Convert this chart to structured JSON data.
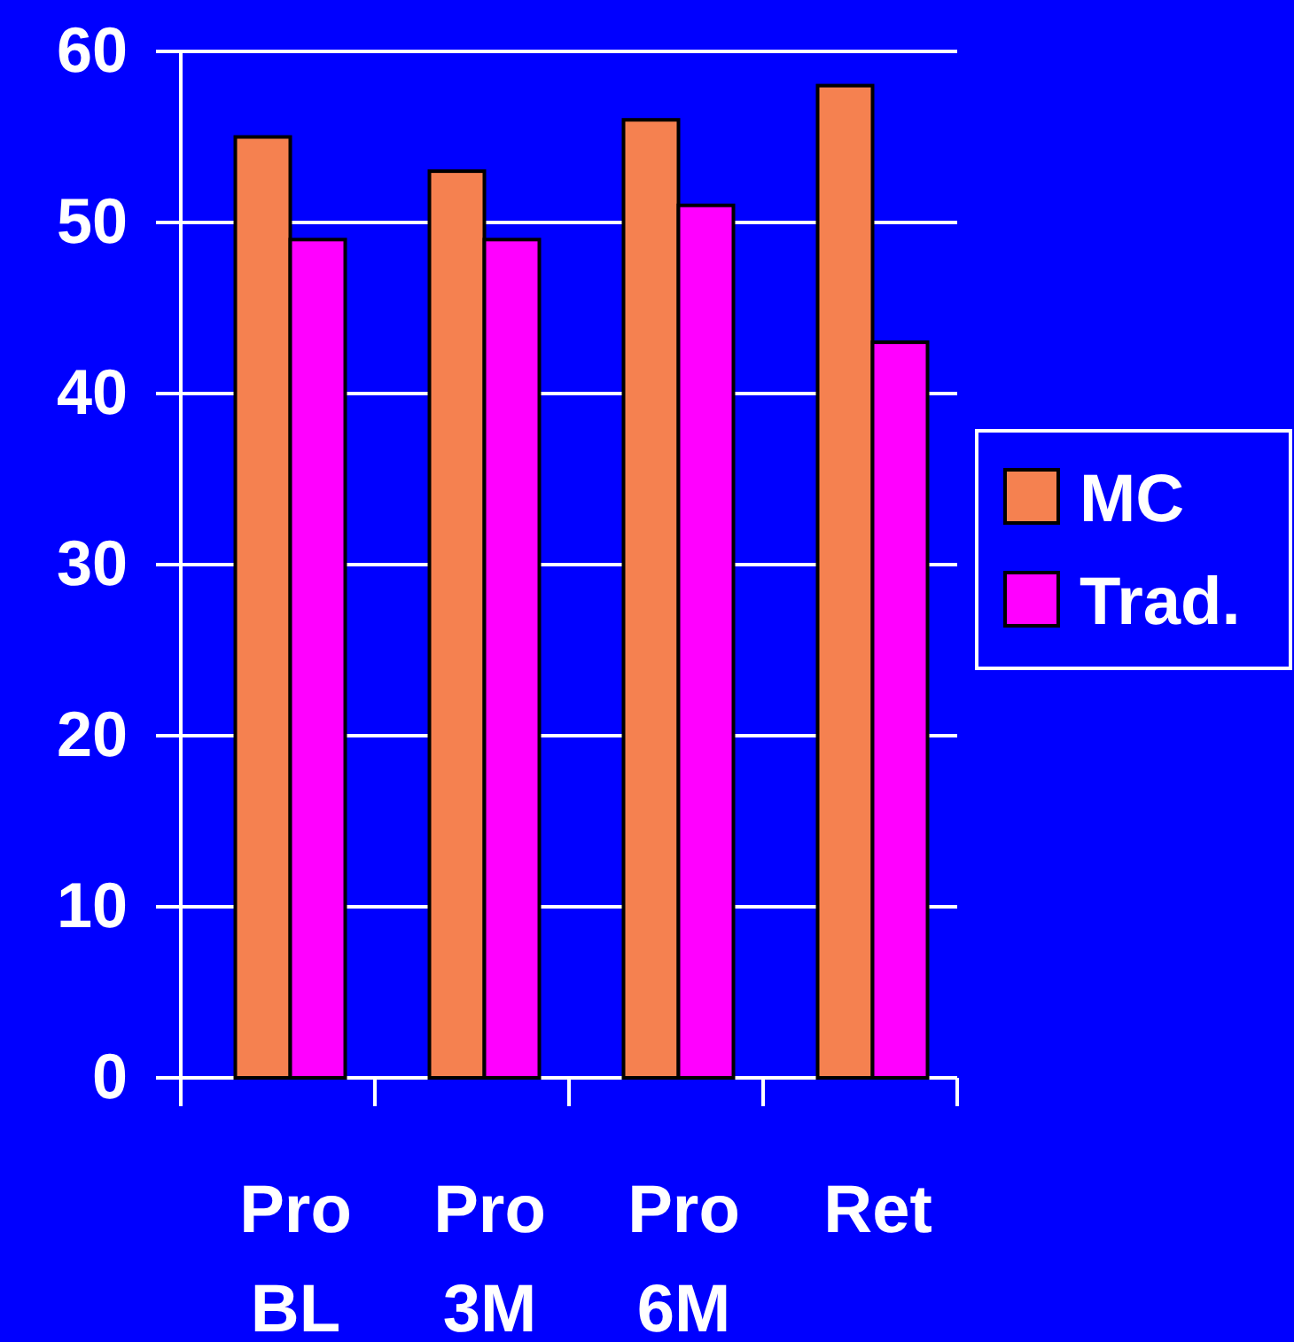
{
  "chart_data": {
    "type": "bar",
    "categories": [
      "Pro BL",
      "Pro 3M",
      "Pro 6M",
      "Ret"
    ],
    "series": [
      {
        "name": "MC",
        "color": "#f58150",
        "values": [
          55,
          53,
          56,
          58
        ]
      },
      {
        "name": "Trad.",
        "color": "#ff00ff",
        "values": [
          49,
          49,
          51,
          43
        ]
      }
    ],
    "ylim": [
      0,
      60
    ],
    "yticks": [
      0,
      10,
      20,
      30,
      40,
      50,
      60
    ],
    "grid": "y",
    "legend": "right"
  }
}
